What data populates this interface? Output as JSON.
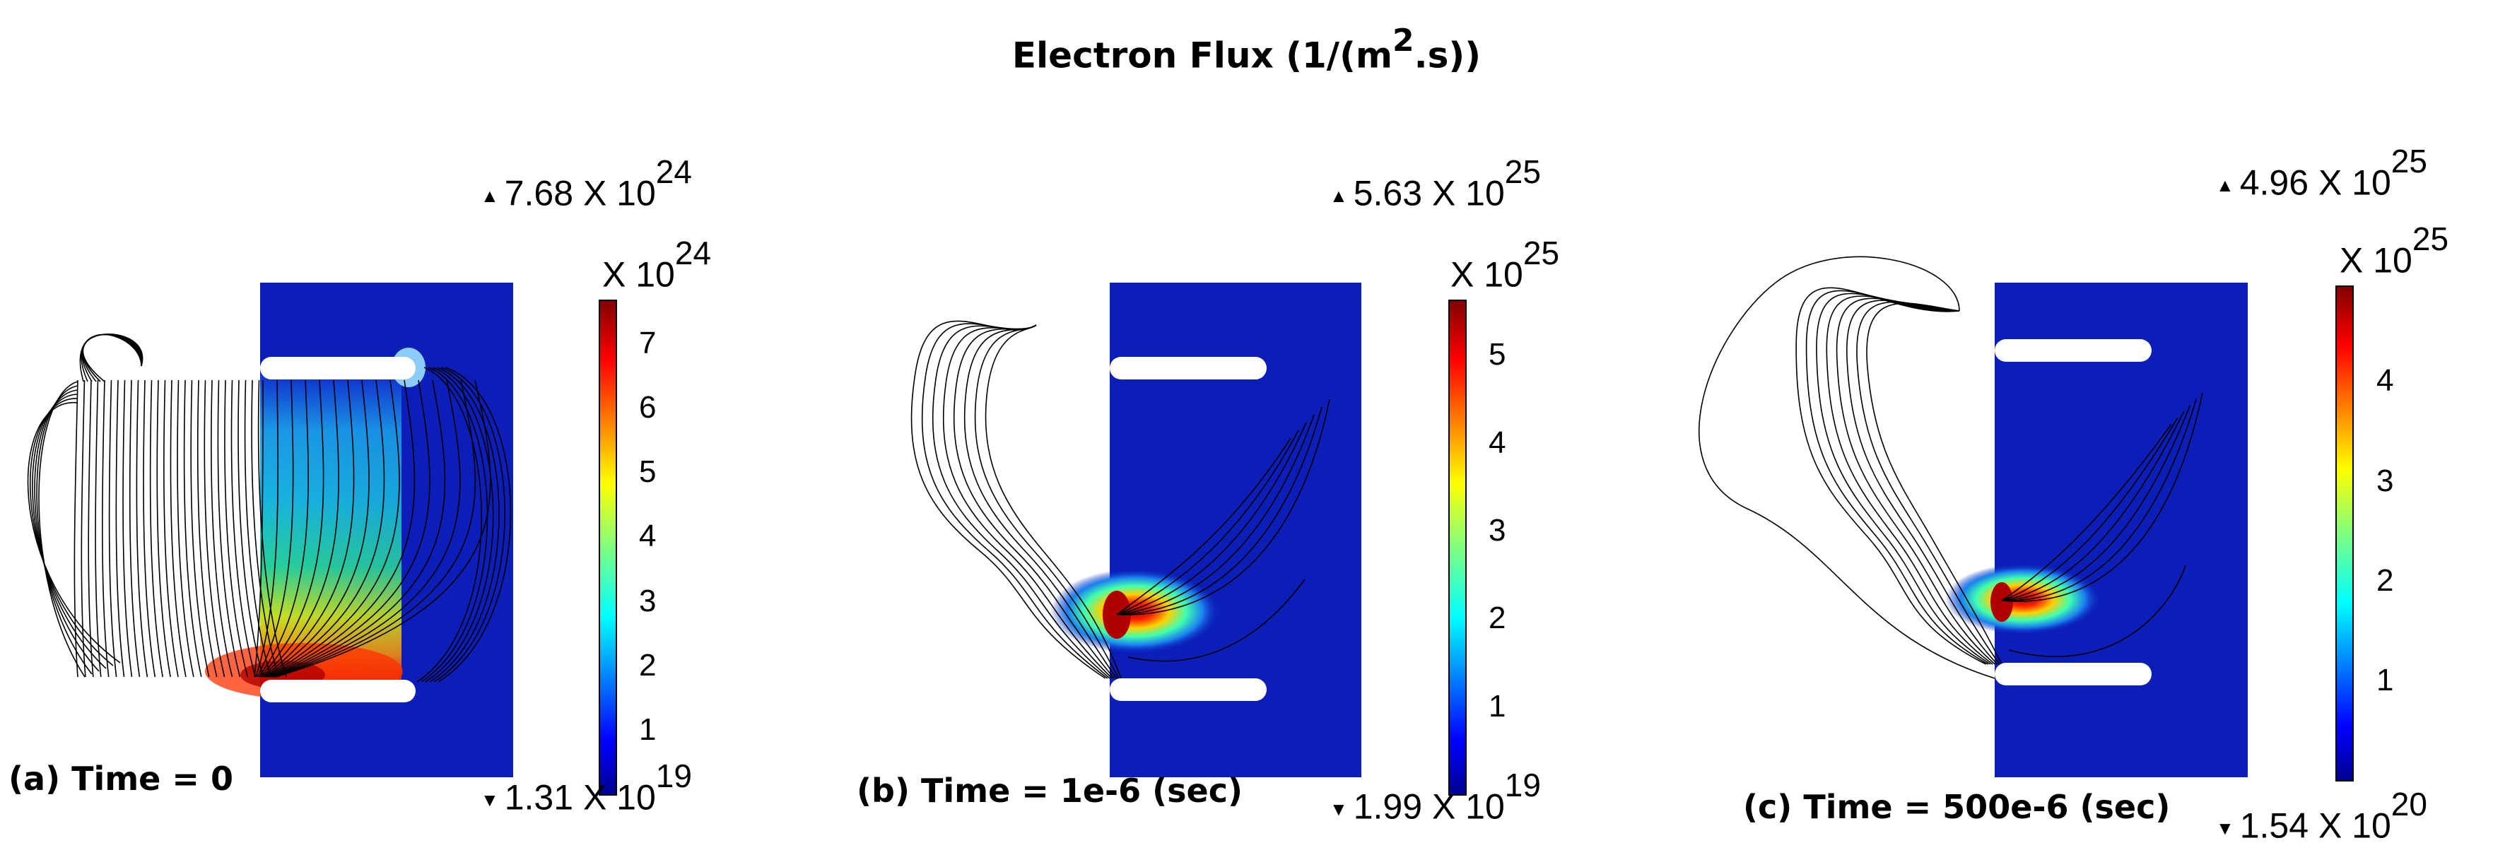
{
  "figure_title": "Electron Flux (1/(m",
  "figure_title_sup": "2",
  "figure_title_end": ".s))",
  "panels": [
    {
      "caption": "(a) Time = 0",
      "max_marker": "▲",
      "max_label": "7.68 X 10",
      "max_exp": "24",
      "min_marker": "▼",
      "min_label": "1.31 X 10",
      "min_exp": "19",
      "unit_label": "X 10",
      "unit_exp": "24",
      "ticks": [
        "7",
        "6",
        "5",
        "4",
        "3",
        "2",
        "1"
      ],
      "tick_values": [
        7,
        6,
        5,
        4,
        3,
        2,
        1
      ],
      "scale_max": 7.68
    },
    {
      "caption": "(b) Time = 1e-6 (sec)",
      "max_marker": "▲",
      "max_label": "5.63 X 10",
      "max_exp": "25",
      "min_marker": "▼",
      "min_label": "1.99 X 10",
      "min_exp": "19",
      "unit_label": "X 10",
      "unit_exp": "25",
      "ticks": [
        "5",
        "4",
        "3",
        "2",
        "1"
      ],
      "tick_values": [
        5,
        4,
        3,
        2,
        1
      ],
      "scale_max": 5.63
    },
    {
      "caption": "(c) Time = 500e-6 (sec)",
      "max_marker": "▲",
      "max_label": "4.96 X 10",
      "max_exp": "25",
      "min_marker": "▼",
      "min_label": "1.54 X 10",
      "min_exp": "20",
      "unit_label": "X 10",
      "unit_exp": "25",
      "ticks": [
        "4",
        "3",
        "2",
        "1"
      ],
      "tick_values": [
        4,
        3,
        2,
        1
      ],
      "scale_max": 4.96
    }
  ],
  "colors": {
    "field_background": "#0b1fb8",
    "electrode": "#ffffff",
    "streamline": "#000000",
    "hot": "#c40000"
  }
}
